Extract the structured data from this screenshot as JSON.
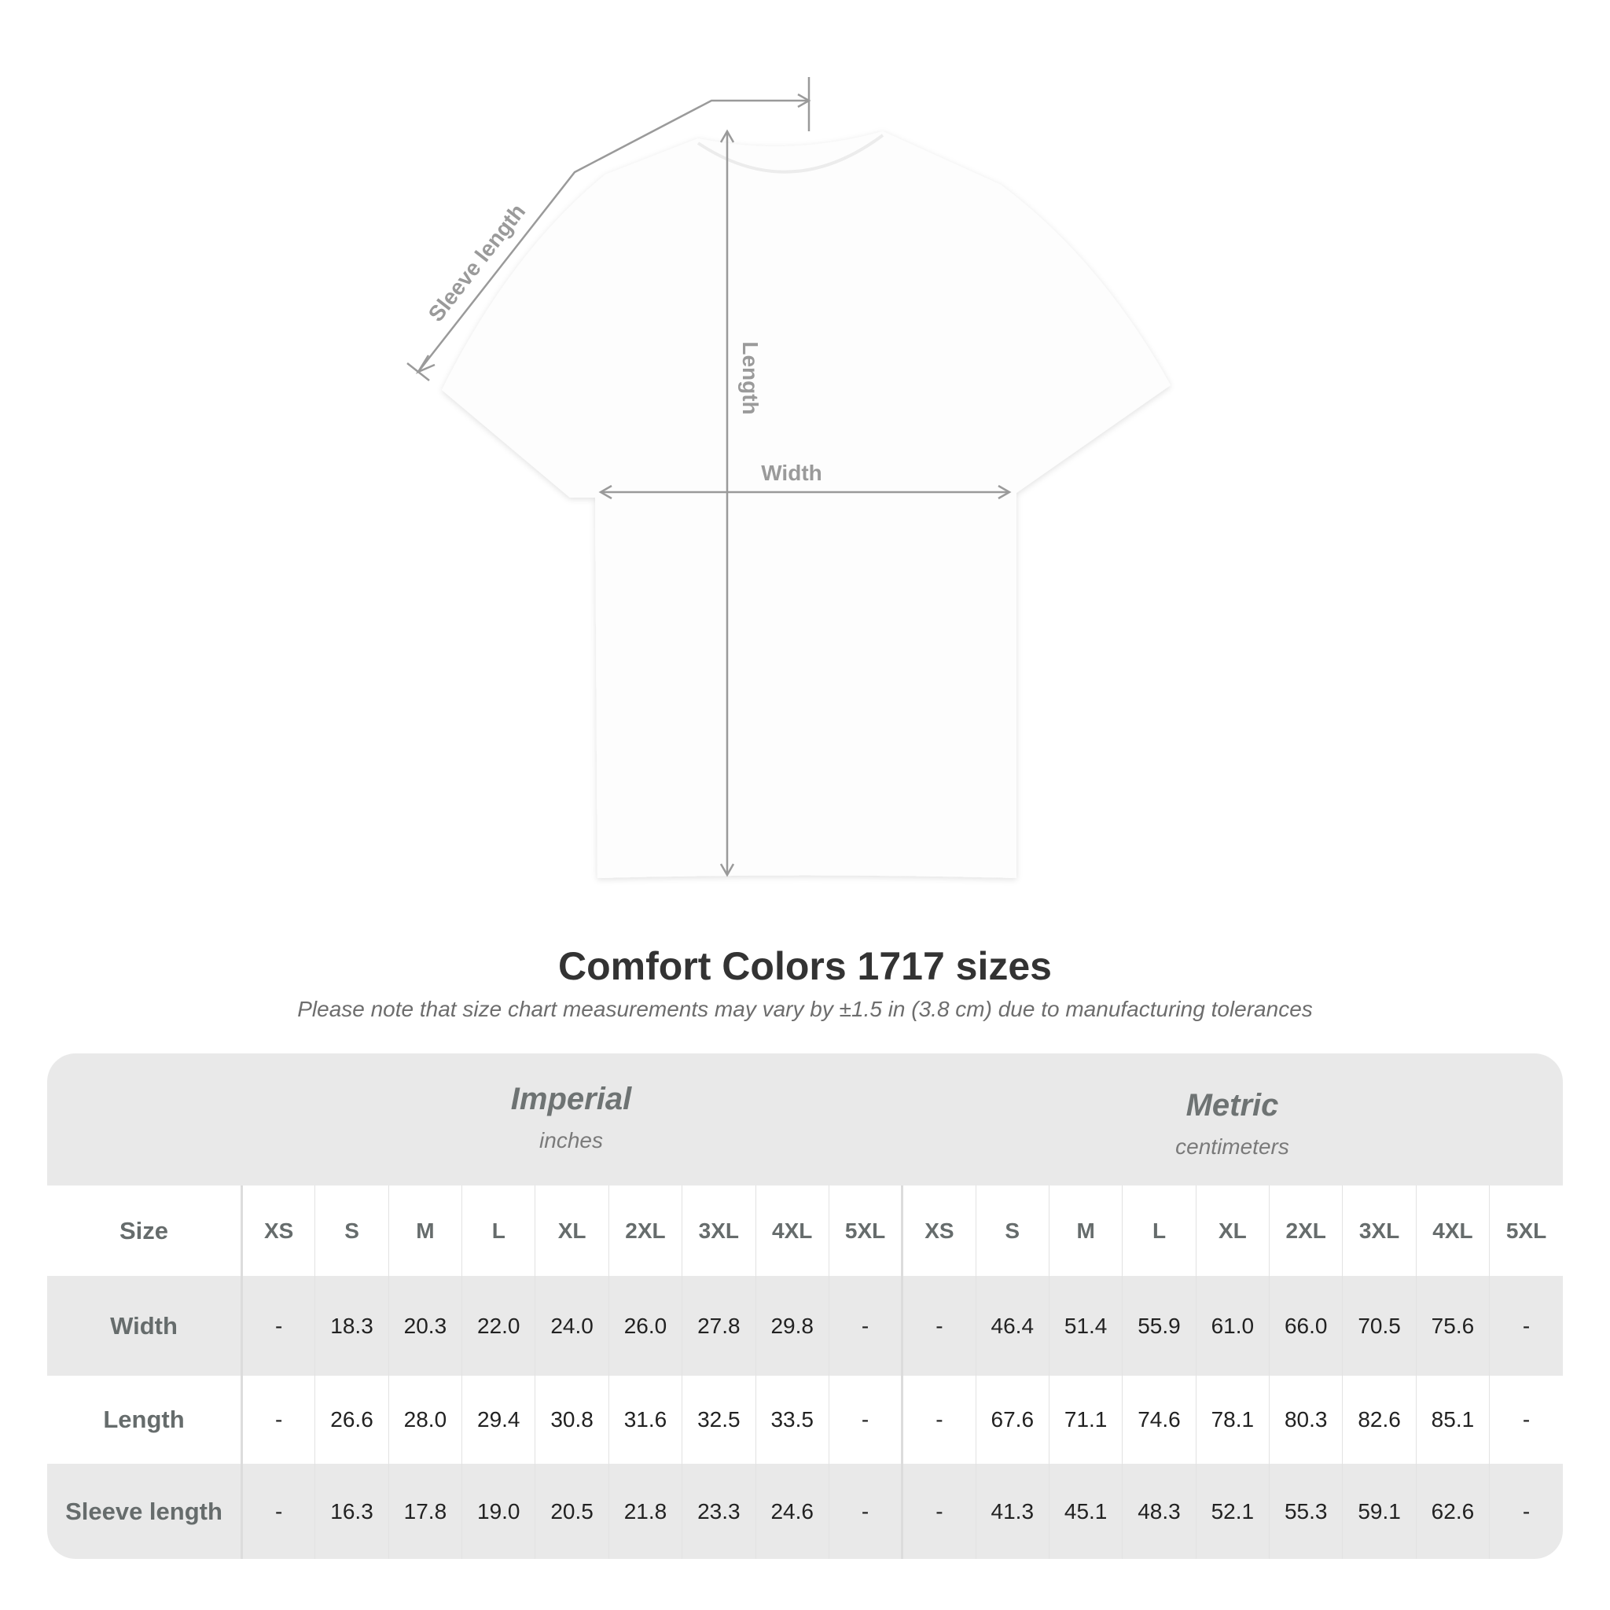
{
  "diagram": {
    "labels": {
      "sleeve": "Sleeve length",
      "length": "Length",
      "width": "Width"
    },
    "line_color": "#9a9a9a"
  },
  "title": "Comfort Colors 1717 sizes",
  "note": "Please note that size chart measurements may vary by ±1.5 in (3.8 cm) due to manufacturing tolerances",
  "table": {
    "imperial": {
      "name": "Imperial",
      "unit": "inches"
    },
    "metric": {
      "name": "Metric",
      "unit": "centimeters"
    },
    "size_label": "Size",
    "sizes": [
      "XS",
      "S",
      "M",
      "L",
      "XL",
      "2XL",
      "3XL",
      "4XL",
      "5XL"
    ],
    "rows": [
      {
        "label": "Width",
        "imperial": [
          "-",
          "18.3",
          "20.3",
          "22.0",
          "24.0",
          "26.0",
          "27.8",
          "29.8",
          "-"
        ],
        "metric": [
          "-",
          "46.4",
          "51.4",
          "55.9",
          "61.0",
          "66.0",
          "70.5",
          "75.6",
          "-"
        ]
      },
      {
        "label": "Length",
        "imperial": [
          "-",
          "26.6",
          "28.0",
          "29.4",
          "30.8",
          "31.6",
          "32.5",
          "33.5",
          "-"
        ],
        "metric": [
          "-",
          "67.6",
          "71.1",
          "74.6",
          "78.1",
          "80.3",
          "82.6",
          "85.1",
          "-"
        ]
      },
      {
        "label": "Sleeve length",
        "imperial": [
          "-",
          "16.3",
          "17.8",
          "19.0",
          "20.5",
          "21.8",
          "23.3",
          "24.6",
          "-"
        ],
        "metric": [
          "-",
          "41.3",
          "45.1",
          "48.3",
          "52.1",
          "55.3",
          "59.1",
          "62.6",
          "-"
        ]
      }
    ]
  }
}
